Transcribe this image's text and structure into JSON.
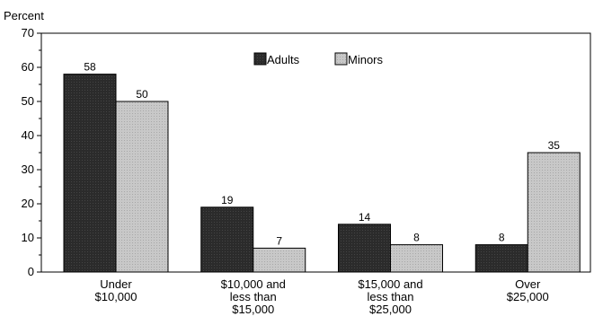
{
  "chart_data": {
    "type": "bar",
    "ylabel": "Percent",
    "ylim": [
      0,
      70
    ],
    "yticks": [
      0,
      10,
      20,
      30,
      40,
      50,
      60,
      70
    ],
    "grid": false,
    "legend_position": "top-center",
    "categories": [
      [
        "Under",
        "$10,000"
      ],
      [
        "$10,000 and",
        "less than",
        "$15,000"
      ],
      [
        "$15,000 and",
        "less than",
        "$25,000"
      ],
      [
        "Over",
        "$25,000"
      ]
    ],
    "series": [
      {
        "name": "Adults",
        "values": [
          58,
          19,
          14,
          8
        ],
        "color": "#2b2b2b"
      },
      {
        "name": "Minors",
        "values": [
          50,
          7,
          8,
          35
        ],
        "color": "#c8c8c8"
      }
    ]
  }
}
